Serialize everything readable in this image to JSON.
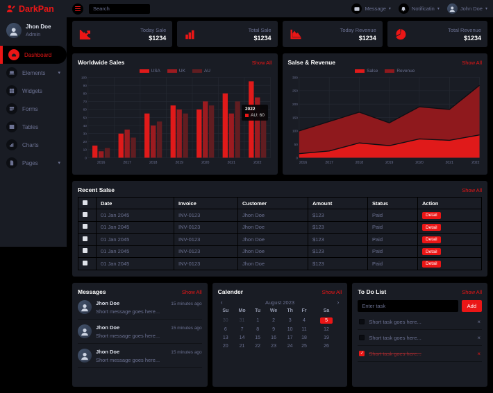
{
  "colors": {
    "primary": "#EB1616",
    "panel": "#191C24",
    "background": "#000000",
    "muted_text": "#6C7293",
    "white": "#FFFFFF",
    "online_dot": "#3EC14B"
  },
  "brand": {
    "name": "DarkPan",
    "icon": "user-edit-icon"
  },
  "sidebar": {
    "user": {
      "name": "Jhon Doe",
      "role": "Admin"
    },
    "items": [
      {
        "label": "Dashboard",
        "icon": "tachometer-icon",
        "active": true
      },
      {
        "label": "Elements",
        "icon": "laptop-icon",
        "chevron": true
      },
      {
        "label": "Widgets",
        "icon": "grid-icon"
      },
      {
        "label": "Forms",
        "icon": "form-icon"
      },
      {
        "label": "Tables",
        "icon": "table-icon"
      },
      {
        "label": "Charts",
        "icon": "chart-bar-icon"
      },
      {
        "label": "Pages",
        "icon": "file-icon",
        "chevron": true
      }
    ]
  },
  "topbar": {
    "menu_icon": "hamburger-icon",
    "search": {
      "placeholder": "Search"
    },
    "message": {
      "label": "Message",
      "icon": "envelope-icon"
    },
    "notification": {
      "label": "Notificatin",
      "icon": "bell-icon"
    },
    "user": {
      "label": "John Doe"
    }
  },
  "stats": [
    {
      "label": "Today Sale",
      "value": "$1234",
      "icon": "chart-line-icon"
    },
    {
      "label": "Total Sale",
      "value": "$1234",
      "icon": "chart-bar-icon"
    },
    {
      "label": "Today Revenue",
      "value": "$1234",
      "icon": "chart-area-icon"
    },
    {
      "label": "Total Revenue",
      "value": "$1234",
      "icon": "chart-pie-icon"
    }
  ],
  "chart_data": [
    {
      "type": "bar",
      "title": "Worldwide Sales",
      "show_all": "Show All",
      "categories": [
        "2016",
        "2017",
        "2018",
        "2019",
        "2020",
        "2021",
        "2022"
      ],
      "series": [
        {
          "name": "USA",
          "color": "#e01a1a",
          "values": [
            15,
            30,
            55,
            65,
            60,
            80,
            95
          ]
        },
        {
          "name": "UK",
          "color": "#9c1b20",
          "values": [
            8,
            35,
            40,
            60,
            70,
            55,
            75
          ]
        },
        {
          "name": "AU",
          "color": "#611d21",
          "values": [
            12,
            25,
            45,
            55,
            65,
            70,
            60
          ]
        }
      ],
      "ylim": [
        0,
        100
      ],
      "ytick_step": 10,
      "grid": true,
      "legend_position": "top",
      "tooltip": {
        "title": "2022",
        "label": "AU: 60"
      }
    },
    {
      "type": "area",
      "title": "Salse & Revenue",
      "show_all": "Show All",
      "x": [
        "2016",
        "2017",
        "2018",
        "2019",
        "2020",
        "2021",
        "2022"
      ],
      "series": [
        {
          "name": "Salse",
          "color": "#e01a1a",
          "values": [
            15,
            25,
            55,
            45,
            70,
            65,
            85
          ]
        },
        {
          "name": "Revenue",
          "color": "#8f191d",
          "values": [
            100,
            135,
            170,
            130,
            190,
            180,
            270
          ]
        }
      ],
      "ylim": [
        0,
        300
      ],
      "ytick_step": 50,
      "grid": true,
      "legend_position": "top"
    }
  ],
  "recent_sales": {
    "title": "Recent Salse",
    "show_all": "Show All",
    "columns": [
      "Date",
      "Invoice",
      "Customer",
      "Amount",
      "Status",
      "Action"
    ],
    "rows": [
      {
        "date": "01 Jan 2045",
        "invoice": "INV-0123",
        "customer": "Jhon Doe",
        "amount": "$123",
        "status": "Paid",
        "action": "Detail"
      },
      {
        "date": "01 Jan 2045",
        "invoice": "INV-0123",
        "customer": "Jhon Doe",
        "amount": "$123",
        "status": "Paid",
        "action": "Detail"
      },
      {
        "date": "01 Jan 2045",
        "invoice": "INV-0123",
        "customer": "Jhon Doe",
        "amount": "$123",
        "status": "Paid",
        "action": "Detail"
      },
      {
        "date": "01 Jan 2045",
        "invoice": "INV-0123",
        "customer": "Jhon Doe",
        "amount": "$123",
        "status": "Paid",
        "action": "Detail"
      },
      {
        "date": "01 Jan 2045",
        "invoice": "INV-0123",
        "customer": "Jhon Doe",
        "amount": "$123",
        "status": "Paid",
        "action": "Detail"
      }
    ]
  },
  "messages": {
    "title": "Messages",
    "show_all": "Show All",
    "items": [
      {
        "name": "Jhon Doe",
        "time": "15 minutes ago",
        "text": "Short message goes here..."
      },
      {
        "name": "Jhon Doe",
        "time": "15 minutes ago",
        "text": "Short message goes here..."
      },
      {
        "name": "Jhon Doe",
        "time": "15 minutes ago",
        "text": "Short message goes here..."
      }
    ]
  },
  "calendar": {
    "title": "Calender",
    "show_all": "Show All",
    "month": "August 2023",
    "prev_arrow": "‹",
    "next_arrow": "›",
    "weekdays": [
      "Su",
      "Mo",
      "Tu",
      "We",
      "Th",
      "Fr",
      "Sa"
    ],
    "weeks": [
      [
        {
          "d": "30",
          "m": 1
        },
        {
          "d": "31",
          "m": 1
        },
        {
          "d": "1"
        },
        {
          "d": "2"
        },
        {
          "d": "3"
        },
        {
          "d": "4"
        },
        {
          "d": "5",
          "s": 1
        }
      ],
      [
        {
          "d": "6"
        },
        {
          "d": "7"
        },
        {
          "d": "8"
        },
        {
          "d": "9"
        },
        {
          "d": "10"
        },
        {
          "d": "11"
        },
        {
          "d": "12"
        }
      ],
      [
        {
          "d": "13"
        },
        {
          "d": "14"
        },
        {
          "d": "15"
        },
        {
          "d": "16"
        },
        {
          "d": "17"
        },
        {
          "d": "18"
        },
        {
          "d": "19"
        }
      ],
      [
        {
          "d": "20"
        },
        {
          "d": "21"
        },
        {
          "d": "22"
        },
        {
          "d": "23"
        },
        {
          "d": "24"
        },
        {
          "d": "25"
        },
        {
          "d": "26"
        }
      ]
    ]
  },
  "todo": {
    "title": "To Do List",
    "show_all": "Show All",
    "input_placeholder": "Enter task",
    "add_label": "Add",
    "items": [
      {
        "text": "Short task goes here...",
        "checked": false
      },
      {
        "text": "Short task goes here...",
        "checked": false
      },
      {
        "text": "Short task goes here...",
        "checked": true
      }
    ]
  }
}
